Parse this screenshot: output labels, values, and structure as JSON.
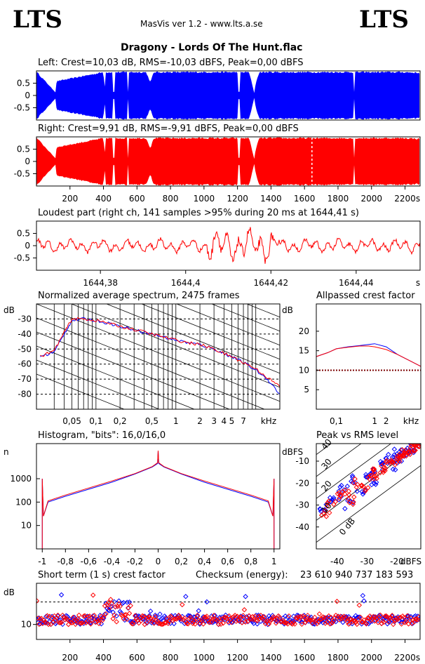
{
  "header": {
    "logo_left": "LTS",
    "logo_right": "LTS",
    "app_title": "MasVis ver 1.2 - www.lts.a.se",
    "file_title": "Dragony - Lords Of The Hunt.flac"
  },
  "colors": {
    "left": "#0000ff",
    "right": "#ff0000",
    "dotted": "#7a0000"
  },
  "chart_data": [
    {
      "type": "area",
      "title": "Left: Crest=10,03 dB, RMS=-10,03 dBFS, Peak=0,00 dBFS",
      "ytick_labels": [
        "0.5",
        "0",
        "-0.5"
      ],
      "ylim": [
        -1,
        1
      ],
      "xlim": [
        0,
        2290
      ],
      "series": [
        {
          "name": "left",
          "color": "#0000ff"
        }
      ]
    },
    {
      "type": "area",
      "title": "Right: Crest=9,91 dB, RMS=-9,91 dBFS, Peak=0,00 dBFS",
      "ytick_labels": [
        "0.5",
        "0",
        "-0.5"
      ],
      "xtick_labels": [
        "200",
        "400",
        "600",
        "800",
        "1000",
        "1200",
        "1400",
        "1600",
        "1800",
        "2000",
        "2200",
        "s"
      ],
      "ylim": [
        -1,
        1
      ],
      "xlim": [
        0,
        2290
      ],
      "loudest_marker_s": 1644.41,
      "series": [
        {
          "name": "right",
          "color": "#ff0000"
        }
      ]
    },
    {
      "type": "line",
      "title": "Loudest part (right ch, 141 samples >95% during 20 ms at 1644,41 s)",
      "ytick_labels": [
        "0.5",
        "0",
        "-0.5"
      ],
      "xtick_labels": [
        "1644,38",
        "1644,4",
        "1644,42",
        "1644,44",
        "s"
      ],
      "xticks": [
        1644.38,
        1644.4,
        1644.42,
        1644.44
      ],
      "xlim": [
        1644.365,
        1644.455
      ],
      "ylim": [
        -1,
        1
      ]
    },
    {
      "type": "line",
      "title": "Normalized average spectrum, 2475 frames",
      "ylabel": "dB",
      "ytick_labels": [
        "-30",
        "-40",
        "-50",
        "-60",
        "-70",
        "-80"
      ],
      "xtick_labels": [
        "0,05",
        "0,1",
        "0,2",
        "0,5",
        "1",
        "2",
        "3",
        "4",
        "5",
        "7",
        "kHz"
      ],
      "ylim": [
        -90,
        -20
      ],
      "series": [
        {
          "name": "left",
          "x": [
            0.02,
            0.03,
            0.04,
            0.05,
            0.07,
            0.1,
            0.15,
            0.2,
            0.3,
            0.5,
            0.7,
            1,
            1.5,
            2,
            3,
            4,
            5,
            7,
            10,
            14,
            20
          ],
          "values": [
            -55,
            -52,
            -40,
            -31,
            -30,
            -31,
            -33,
            -35,
            -37,
            -40,
            -42,
            -44,
            -46,
            -47,
            -50,
            -53,
            -55,
            -59,
            -64,
            -70,
            -80
          ]
        },
        {
          "name": "right",
          "x": [
            0.02,
            0.03,
            0.04,
            0.05,
            0.07,
            0.1,
            0.15,
            0.2,
            0.3,
            0.5,
            0.7,
            1,
            1.5,
            2,
            3,
            4,
            5,
            7,
            10,
            14,
            20
          ],
          "values": [
            -55,
            -51,
            -39,
            -30,
            -30,
            -31,
            -33,
            -35,
            -37,
            -40,
            -42,
            -44,
            -46,
            -47,
            -50,
            -53,
            -55,
            -59,
            -63,
            -69,
            -75
          ]
        }
      ]
    },
    {
      "type": "line",
      "title": "Allpassed crest factor",
      "ylabel": "dB",
      "ytick_labels": [
        "20",
        "15",
        "10",
        "5"
      ],
      "xtick_labels": [
        "0,1",
        "1",
        "2",
        "kHz"
      ],
      "ylim": [
        0,
        27
      ],
      "reference_db": 10,
      "series": [
        {
          "name": "left",
          "x": [
            0.03,
            0.06,
            0.1,
            0.2,
            0.4,
            0.7,
            1,
            2,
            4,
            8,
            16
          ],
          "values": [
            13.5,
            14.5,
            15.5,
            16,
            16.3,
            16.6,
            16.8,
            16,
            14,
            12.5,
            11
          ]
        },
        {
          "name": "right",
          "x": [
            0.03,
            0.06,
            0.1,
            0.2,
            0.4,
            0.7,
            1,
            2,
            4,
            8,
            16
          ],
          "values": [
            13.5,
            14.5,
            15.5,
            15.9,
            16.2,
            16.2,
            16,
            15.3,
            14,
            12.5,
            11
          ]
        }
      ]
    },
    {
      "type": "line",
      "title": "Histogram, \"bits\": 16,0/16,0",
      "ylabel": "n",
      "ytick_labels": [
        "1000",
        "100",
        "10"
      ],
      "xtick_labels": [
        "-1",
        "-0,8",
        "-0,6",
        "-0,4",
        "-0,2",
        "0",
        "0,2",
        "0,4",
        "0,6",
        "0,8",
        "1"
      ],
      "xlim": [
        -1.05,
        1.05
      ],
      "ylim_log10": [
        0,
        4.5
      ],
      "series": [
        {
          "name": "left",
          "x": [
            -0.99,
            -0.95,
            -0.8,
            -0.6,
            -0.4,
            -0.2,
            -0.05,
            0,
            0.05,
            0.2,
            0.4,
            0.6,
            0.8,
            0.95,
            0.99
          ],
          "values_log10": [
            1.4,
            2.0,
            2.25,
            2.55,
            2.85,
            3.2,
            3.5,
            3.65,
            3.5,
            3.2,
            2.85,
            2.55,
            2.25,
            2.0,
            1.4
          ]
        },
        {
          "name": "right",
          "x": [
            -0.99,
            -0.95,
            -0.8,
            -0.6,
            -0.4,
            -0.2,
            -0.05,
            0,
            0.05,
            0.2,
            0.4,
            0.6,
            0.8,
            0.95,
            0.99
          ],
          "values_log10": [
            1.5,
            2.05,
            2.3,
            2.6,
            2.9,
            3.22,
            3.52,
            3.68,
            3.52,
            3.22,
            2.9,
            2.6,
            2.3,
            2.05,
            1.5
          ]
        }
      ]
    },
    {
      "type": "scatter",
      "title": "Peak vs RMS level",
      "ylabel": "dBFS",
      "xlabel": "dBFS",
      "ytick_labels": [
        "-10",
        "-20",
        "-30",
        "-40"
      ],
      "xtick_labels": [
        "-40",
        "-30",
        "-20"
      ],
      "diagonal_labels": [
        "40",
        "30",
        "20",
        "10",
        "0 dB"
      ],
      "xlim": [
        -47,
        -12
      ],
      "ylim": [
        -50,
        -2
      ],
      "series": [
        {
          "name": "left",
          "x": [
            -45,
            -43,
            -40,
            -38,
            -36,
            -34,
            -32,
            -30,
            -28,
            -27,
            -25,
            -24,
            -22,
            -21,
            -20,
            -19,
            -18,
            -17,
            -16,
            -15,
            -14
          ],
          "y": [
            -32,
            -28,
            -26,
            -22,
            -30,
            -18,
            -24,
            -16,
            -14,
            -20,
            -12,
            -10,
            -8,
            -12,
            -6,
            -9,
            -5,
            -7,
            -4,
            -6,
            -3
          ]
        },
        {
          "name": "right",
          "x": [
            -44,
            -42,
            -39,
            -37,
            -35,
            -33,
            -31,
            -29,
            -27,
            -26,
            -24,
            -23,
            -21,
            -20,
            -19,
            -18,
            -17,
            -16,
            -15,
            -14,
            -13
          ],
          "y": [
            -34,
            -30,
            -25,
            -24,
            -28,
            -20,
            -22,
            -18,
            -15,
            -17,
            -13,
            -11,
            -10,
            -9,
            -8,
            -7,
            -6,
            -5,
            -5,
            -4,
            -3
          ]
        }
      ]
    },
    {
      "type": "scatter",
      "title": "Short term (1 s) crest factor",
      "checksum_label": "Checksum (energy):",
      "checksum_value": "23 610 940 737 183 593",
      "ylabel": "dB",
      "ytick_labels": [
        "10"
      ],
      "xtick_labels": [
        "200",
        "400",
        "600",
        "800",
        "1000",
        "1200",
        "1400",
        "1600",
        "1800",
        "2000",
        "2200",
        "s"
      ],
      "xlim": [
        0,
        2290
      ],
      "ylim": [
        6,
        21
      ],
      "reference_db": 16
    }
  ]
}
